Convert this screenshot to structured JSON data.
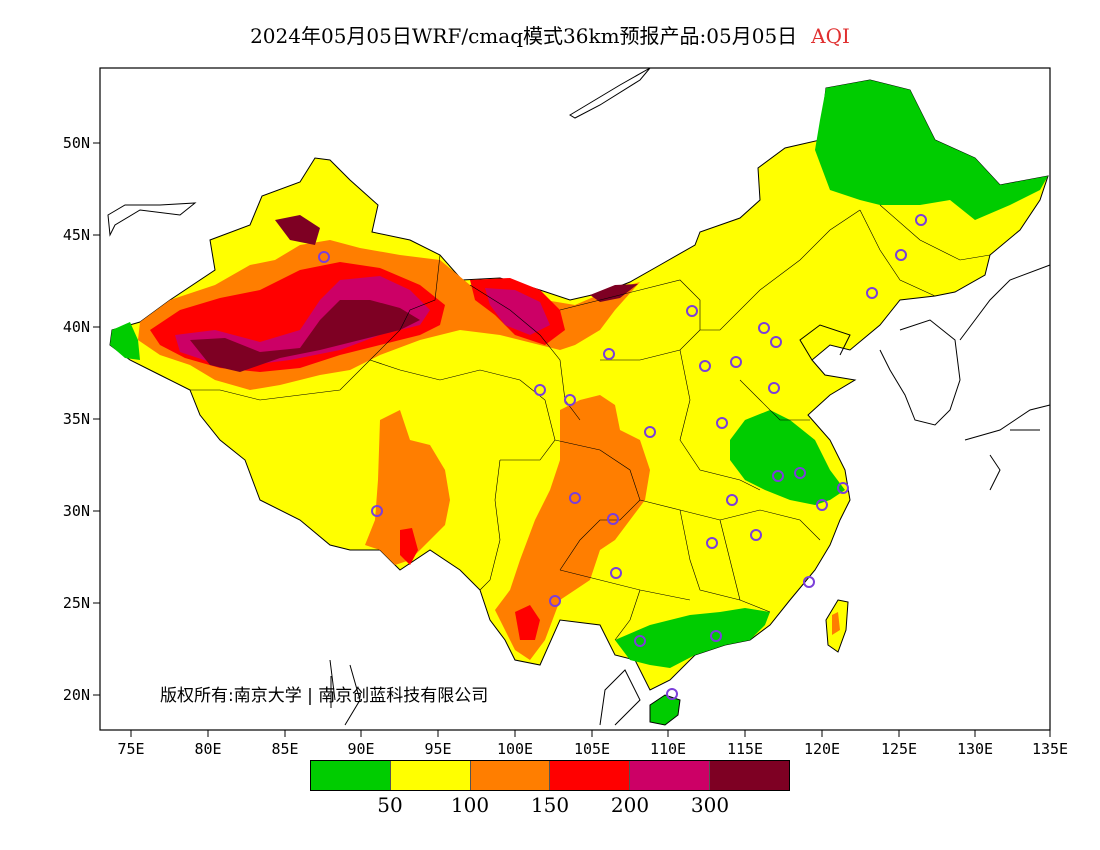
{
  "title": {
    "main": "2024年05月05日WRF/cmaq模式36km预报产品:05月05日",
    "variable": "AQI",
    "variable_color": "#e03030"
  },
  "axes": {
    "latitude_labels": [
      "50N",
      "45N",
      "40N",
      "35N",
      "30N",
      "25N",
      "20N"
    ],
    "longitude_labels": [
      "75E",
      "80E",
      "85E",
      "90E",
      "95E",
      "100E",
      "105E",
      "110E",
      "115E",
      "120E",
      "125E",
      "130E",
      "135E"
    ],
    "lon_range": [
      73,
      135
    ],
    "lat_range": [
      18,
      54
    ]
  },
  "copyright": "版权所有:南京大学 | 南京创蓝科技有限公司",
  "legend": {
    "colors": [
      "#00cc00",
      "#ffff00",
      "#ff7e00",
      "#ff0000",
      "#cc0066",
      "#7e0023"
    ],
    "labels": [
      "50",
      "100",
      "150",
      "200",
      "300"
    ]
  },
  "station_marker_color": "#7b3fd9"
}
